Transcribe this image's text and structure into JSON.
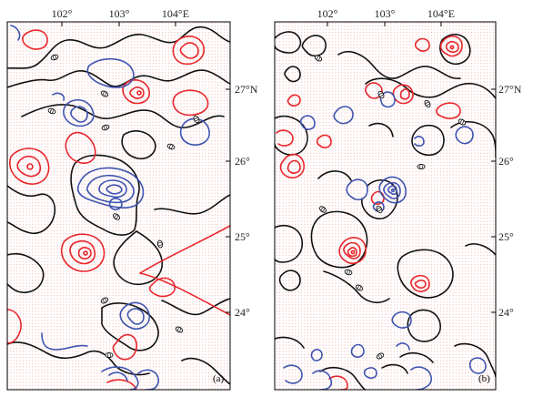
{
  "panels": [
    {
      "letter": "(a)",
      "lon_labels": [
        "102°",
        "103°",
        "104°E"
      ],
      "lat_labels": [
        "27°N",
        "26°",
        "25°",
        "24°"
      ],
      "zero_label": "0"
    },
    {
      "letter": "(b)",
      "lon_labels": [
        "102°",
        "103°",
        "104°E"
      ],
      "lat_labels": [
        "27°N",
        "26°",
        "25°",
        "24°"
      ],
      "zero_label": "0"
    }
  ],
  "colors": {
    "positive": "#e8262b",
    "negative": "#3e54b0",
    "zero": "#111111",
    "stipple": "#f2a5a5",
    "frame": "#000000"
  }
}
